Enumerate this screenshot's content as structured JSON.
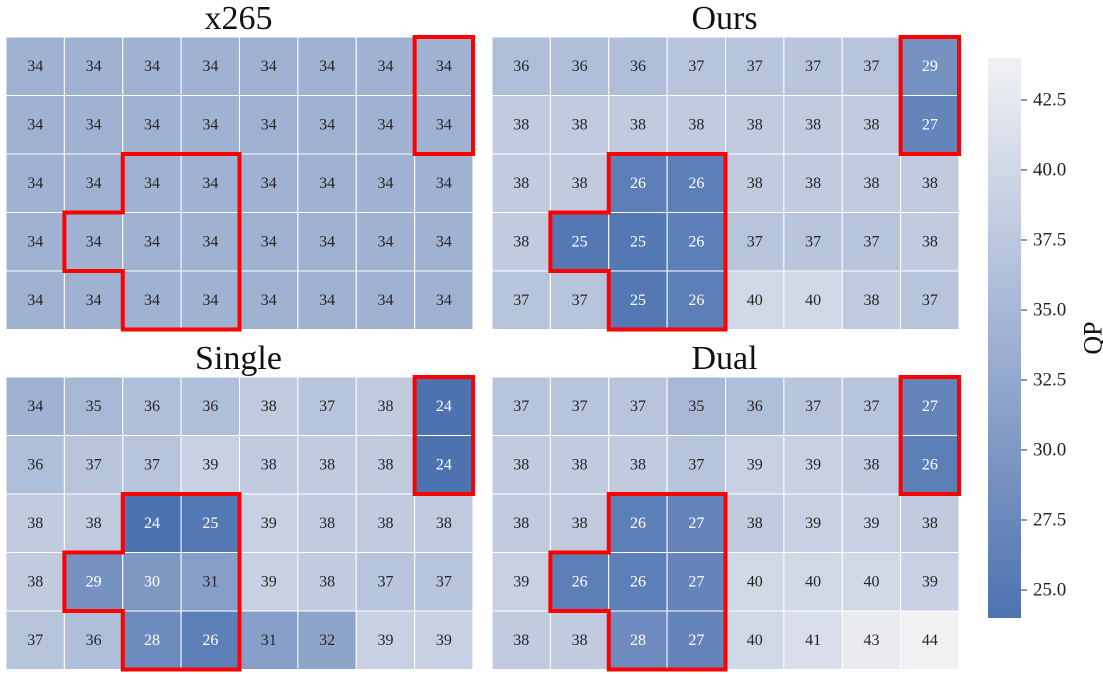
{
  "chart_data": {
    "type": "heatmap",
    "panels": [
      {
        "title": "x265",
        "values": [
          [
            34,
            34,
            34,
            34,
            34,
            34,
            34,
            34
          ],
          [
            34,
            34,
            34,
            34,
            34,
            34,
            34,
            34
          ],
          [
            34,
            34,
            34,
            34,
            34,
            34,
            34,
            34
          ],
          [
            34,
            34,
            34,
            34,
            34,
            34,
            34,
            34
          ],
          [
            34,
            34,
            34,
            34,
            34,
            34,
            34,
            34
          ]
        ]
      },
      {
        "title": "Ours",
        "values": [
          [
            36,
            36,
            36,
            37,
            37,
            37,
            37,
            29
          ],
          [
            38,
            38,
            38,
            38,
            38,
            38,
            38,
            27
          ],
          [
            38,
            38,
            26,
            26,
            38,
            38,
            38,
            38
          ],
          [
            38,
            25,
            25,
            26,
            37,
            37,
            37,
            38
          ],
          [
            37,
            37,
            25,
            26,
            40,
            40,
            38,
            37
          ]
        ]
      },
      {
        "title": "Single",
        "values": [
          [
            34,
            35,
            36,
            36,
            38,
            37,
            38,
            24
          ],
          [
            36,
            37,
            37,
            39,
            38,
            38,
            38,
            24
          ],
          [
            38,
            38,
            24,
            25,
            39,
            38,
            38,
            38
          ],
          [
            38,
            29,
            30,
            31,
            39,
            38,
            37,
            37
          ],
          [
            37,
            36,
            28,
            26,
            31,
            32,
            39,
            39
          ]
        ]
      },
      {
        "title": "Dual",
        "values": [
          [
            37,
            37,
            37,
            35,
            36,
            37,
            37,
            27
          ],
          [
            38,
            38,
            38,
            37,
            39,
            39,
            38,
            26
          ],
          [
            38,
            38,
            26,
            27,
            38,
            39,
            39,
            38
          ],
          [
            39,
            26,
            26,
            27,
            40,
            40,
            40,
            39
          ],
          [
            38,
            38,
            28,
            27,
            40,
            41,
            43,
            44
          ]
        ]
      }
    ],
    "highlight_regions": {
      "color": "#ff0000",
      "column_region_rows": [
        0,
        1
      ],
      "column_region_col": 7,
      "cross_region_cells": [
        [
          2,
          2
        ],
        [
          2,
          3
        ],
        [
          3,
          1
        ],
        [
          3,
          2
        ],
        [
          3,
          3
        ],
        [
          4,
          2
        ],
        [
          4,
          3
        ]
      ]
    },
    "colorbar": {
      "label": "QP",
      "vmin": 24,
      "vmax": 44,
      "ticks": [
        25.0,
        27.5,
        30.0,
        32.5,
        35.0,
        37.5,
        40.0,
        42.5
      ],
      "tick_labels": [
        "25.0",
        "27.5",
        "30.0",
        "32.5",
        "35.0",
        "37.5",
        "40.0",
        "42.5"
      ],
      "color_low": "#4c72b0",
      "color_high": "#f1f1f4"
    },
    "grid": false,
    "legend": "colorbar-right"
  }
}
